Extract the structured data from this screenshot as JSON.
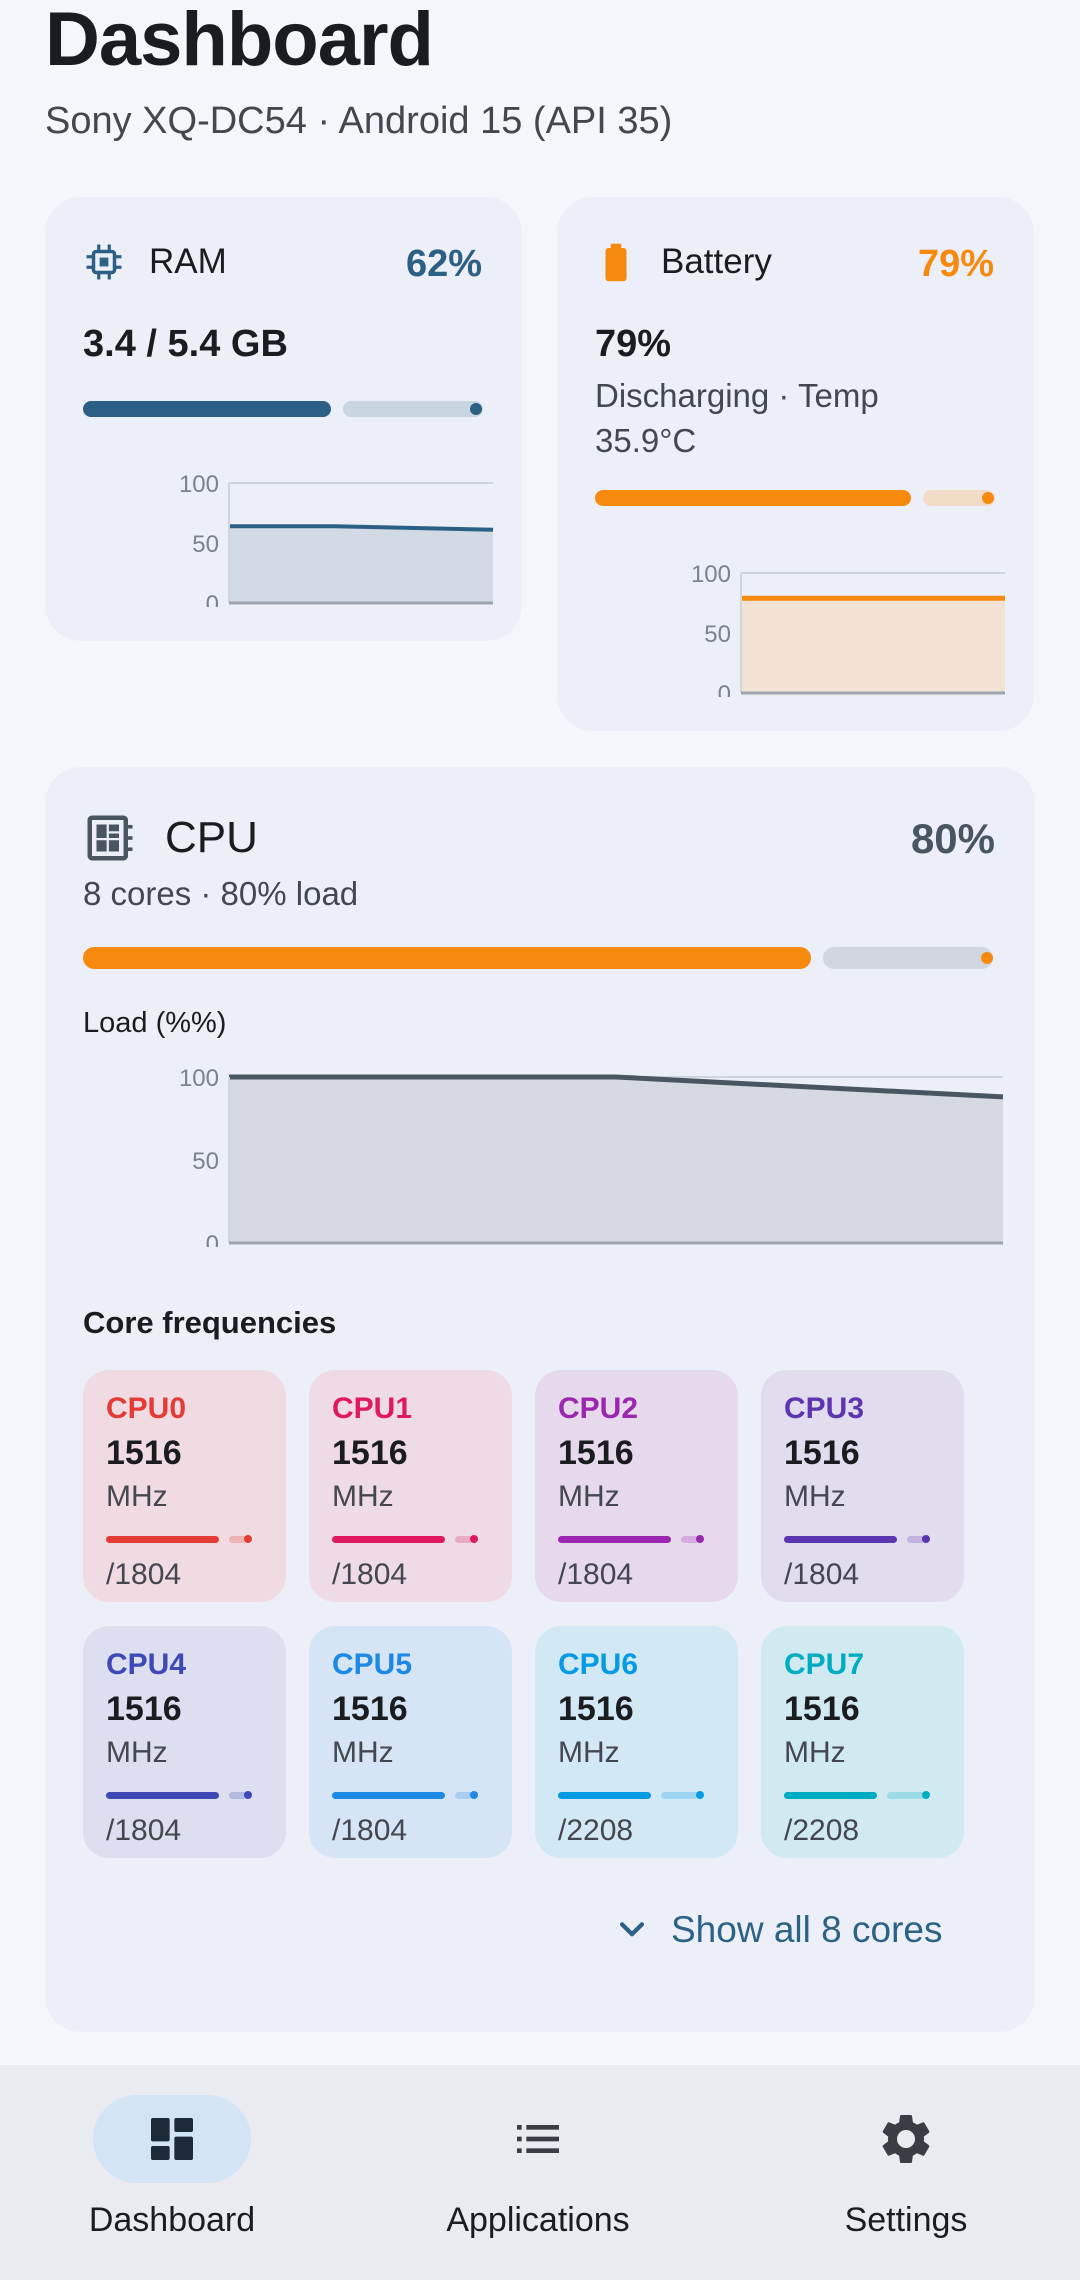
{
  "header": {
    "title": "Dashboard",
    "subtitle": "Sony XQ-DC54 · Android 15 (API 35)"
  },
  "ram": {
    "label": "RAM",
    "percent_label": "62%",
    "value": "3.4 / 5.4 GB",
    "usage_fraction": 0.62,
    "color": "#2b5f84",
    "chart": {
      "ticks": [
        "100",
        "50",
        "0"
      ],
      "ylim": [
        0,
        100
      ],
      "values": [
        64,
        64,
        61
      ]
    }
  },
  "battery": {
    "label": "Battery",
    "percent_label": "79%",
    "value": "79%",
    "status_line1": "Discharging · Temp",
    "status_line2": "35.9°C",
    "level_fraction": 0.79,
    "color": "#f68a0f",
    "chart": {
      "ticks": [
        "100",
        "50",
        "0"
      ],
      "ylim": [
        0,
        100
      ],
      "values": [
        79,
        79,
        79
      ]
    }
  },
  "cpu": {
    "label": "CPU",
    "percent_label": "80%",
    "summary": "8 cores · 80% load",
    "load_fraction": 0.8,
    "bar_color": "#f68a0f",
    "line_color": "#4a5562",
    "chart": {
      "title": "Load (%%)",
      "ticks": [
        "100",
        "50",
        "0"
      ],
      "ylim": [
        0,
        100
      ],
      "values": [
        100,
        100,
        88
      ]
    },
    "frequencies_label": "Core frequencies",
    "cores": [
      {
        "name": "CPU0",
        "freq": "1516",
        "unit": "MHz",
        "max": "/1804",
        "fraction": 0.84,
        "color": "#e53b35",
        "bg": "#f0dbe2"
      },
      {
        "name": "CPU1",
        "freq": "1516",
        "unit": "MHz",
        "max": "/1804",
        "fraction": 0.84,
        "color": "#e0195e",
        "bg": "#eedbe6"
      },
      {
        "name": "CPU2",
        "freq": "1516",
        "unit": "MHz",
        "max": "/1804",
        "fraction": 0.84,
        "color": "#9b27b0",
        "bg": "#e6d9ec"
      },
      {
        "name": "CPU3",
        "freq": "1516",
        "unit": "MHz",
        "max": "/1804",
        "fraction": 0.84,
        "color": "#5e35b1",
        "bg": "#e2dcef"
      },
      {
        "name": "CPU4",
        "freq": "1516",
        "unit": "MHz",
        "max": "/1804",
        "fraction": 0.84,
        "color": "#3f49b5",
        "bg": "#dddff0"
      },
      {
        "name": "CPU5",
        "freq": "1516",
        "unit": "MHz",
        "max": "/1804",
        "fraction": 0.84,
        "color": "#1e88e5",
        "bg": "#d6e5f5"
      },
      {
        "name": "CPU6",
        "freq": "1516",
        "unit": "MHz",
        "max": "/2208",
        "fraction": 0.69,
        "color": "#059be4",
        "bg": "#d3e8f5"
      },
      {
        "name": "CPU7",
        "freq": "1516",
        "unit": "MHz",
        "max": "/2208",
        "fraction": 0.69,
        "color": "#00acc1",
        "bg": "#d1eaf2"
      }
    ],
    "show_all_label": "Show all 8 cores"
  },
  "nav": {
    "items": [
      {
        "label": "Dashboard",
        "icon": "dashboard-icon",
        "active": true
      },
      {
        "label": "Applications",
        "icon": "list-icon",
        "active": false
      },
      {
        "label": "Settings",
        "icon": "gear-icon",
        "active": false
      }
    ]
  },
  "colors": {
    "accent_blue": "#2b6286",
    "card_bg": "#eceff7",
    "page_bg": "#f5f6fb",
    "nav_active_pill": "#d3e4f5"
  }
}
